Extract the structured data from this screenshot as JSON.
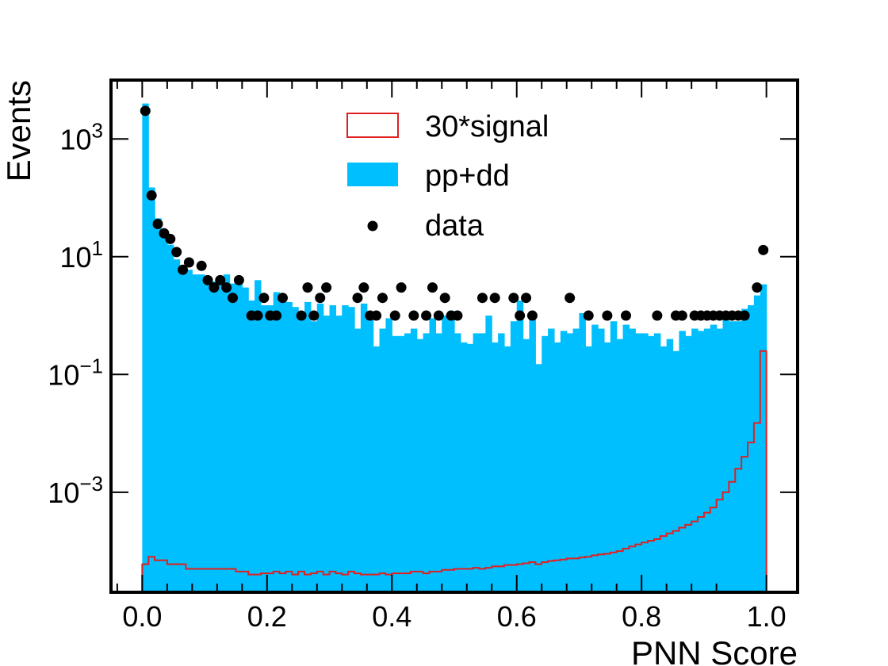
{
  "chart_data": {
    "type": "histogram",
    "xlabel": "PNN Score",
    "ylabel": "Events",
    "xlim": [
      -0.05,
      1.05
    ],
    "ylim": [
      2e-05,
      10000
    ],
    "yscale": "log",
    "grid": false,
    "legend_placement": "top-center",
    "x_ticks": [
      {
        "value": 0.0,
        "label": "0.0"
      },
      {
        "value": 0.2,
        "label": "0.2"
      },
      {
        "value": 0.4,
        "label": "0.4"
      },
      {
        "value": 0.6,
        "label": "0.6"
      },
      {
        "value": 0.8,
        "label": "0.8"
      },
      {
        "value": 1.0,
        "label": "1.0"
      }
    ],
    "y_ticks": [
      {
        "value": 1000,
        "base": "10",
        "exp": "3"
      },
      {
        "value": 10,
        "base": "10",
        "exp": "1"
      },
      {
        "value": 0.1,
        "base": "10",
        "exp": "−1"
      },
      {
        "value": 0.001,
        "base": "10",
        "exp": "−3"
      }
    ],
    "bin_edges_range": [
      0.0,
      1.0
    ],
    "n_bins": 100,
    "series": [
      {
        "name": "pp+dd",
        "kind": "filled-histogram",
        "color": "#00BFFF",
        "values": [
          4000,
          150,
          45,
          22,
          16,
          9,
          7,
          6,
          5,
          5,
          3.5,
          3.8,
          4.5,
          5,
          3.5,
          3.5,
          3,
          1.8,
          4,
          1.5,
          1.5,
          2.5,
          2.3,
          1.7,
          1.4,
          1.1,
          1.7,
          0.8,
          1.6,
          1,
          1.5,
          1,
          1.5,
          1.4,
          0.6,
          1.6,
          1,
          0.3,
          0.6,
          0.9,
          0.45,
          0.45,
          0.5,
          0.6,
          0.4,
          0.5,
          0.9,
          0.5,
          1,
          1.2,
          0.5,
          0.35,
          0.33,
          0.5,
          0.5,
          1,
          0.35,
          0.5,
          0.3,
          0.8,
          1.8,
          0.4,
          0.9,
          0.15,
          0.45,
          0.6,
          0.35,
          0.55,
          0.5,
          0.6,
          1.1,
          0.3,
          0.7,
          0.6,
          0.35,
          0.8,
          0.4,
          0.7,
          0.6,
          0.5,
          0.5,
          0.45,
          0.5,
          0.3,
          0.4,
          0.25,
          0.55,
          0.45,
          0.6,
          0.55,
          0.6,
          0.7,
          0.6,
          1.0,
          0.8,
          0.8,
          1.3,
          1.5,
          2.2,
          3.4
        ]
      },
      {
        "name": "30*signal",
        "kind": "step-histogram",
        "color": "#E02020",
        "values": [
          6e-05,
          8e-05,
          7e-05,
          7e-05,
          6e-05,
          6e-05,
          6e-05,
          5e-05,
          5e-05,
          5e-05,
          5e-05,
          5e-05,
          5e-05,
          5e-05,
          5e-05,
          4.5e-05,
          4.5e-05,
          4e-05,
          4e-05,
          4.2e-05,
          4.2e-05,
          4.5e-05,
          4.2e-05,
          4.5e-05,
          4e-05,
          4.5e-05,
          4e-05,
          4.2e-05,
          4.5e-05,
          4e-05,
          4.5e-05,
          4.2e-05,
          4e-05,
          4.5e-05,
          4.2e-05,
          4e-05,
          4e-05,
          4e-05,
          4.2e-05,
          4e-05,
          4.2e-05,
          4.2e-05,
          4.2e-05,
          4.5e-05,
          4.5e-05,
          4.2e-05,
          4.5e-05,
          4.5e-05,
          4.8e-05,
          4.8e-05,
          5e-05,
          5e-05,
          5e-05,
          5.2e-05,
          5e-05,
          5.2e-05,
          5.5e-05,
          5.5e-05,
          5.8e-05,
          5.8e-05,
          6e-05,
          6.2e-05,
          6.5e-05,
          6e-05,
          6.5e-05,
          6.8e-05,
          7e-05,
          7.2e-05,
          7.5e-05,
          7.5e-05,
          7.8e-05,
          8e-05,
          8.5e-05,
          8.8e-05,
          9e-05,
          9.5e-05,
          0.0001,
          0.00011,
          0.00012,
          0.00013,
          0.00014,
          0.00015,
          0.00016,
          0.00018,
          0.0002,
          0.00022,
          0.00025,
          0.00028,
          0.00032,
          0.00038,
          0.00045,
          0.00055,
          0.00075,
          0.001,
          0.0015,
          0.0025,
          0.004,
          0.007,
          0.015,
          0.25
        ]
      },
      {
        "name": "data",
        "kind": "points",
        "color": "#000000",
        "x": [
          0.005,
          0.015,
          0.025,
          0.035,
          0.045,
          0.055,
          0.065,
          0.075,
          0.095,
          0.105,
          0.115,
          0.125,
          0.135,
          0.145,
          0.155,
          0.175,
          0.185,
          0.195,
          0.205,
          0.215,
          0.225,
          0.255,
          0.265,
          0.275,
          0.285,
          0.295,
          0.345,
          0.355,
          0.365,
          0.375,
          0.385,
          0.405,
          0.415,
          0.435,
          0.455,
          0.465,
          0.475,
          0.485,
          0.495,
          0.505,
          0.545,
          0.565,
          0.595,
          0.605,
          0.615,
          0.625,
          0.685,
          0.715,
          0.745,
          0.775,
          0.825,
          0.855,
          0.865,
          0.885,
          0.895,
          0.905,
          0.915,
          0.925,
          0.935,
          0.945,
          0.955,
          0.965,
          0.985,
          0.995
        ],
        "values": [
          3000,
          110,
          36,
          25,
          20,
          12,
          6,
          8,
          7,
          4,
          3,
          4,
          3,
          2,
          4,
          1,
          1,
          2,
          1,
          1,
          2,
          1,
          3,
          1,
          2,
          3,
          2,
          3,
          1,
          1,
          2,
          1,
          3,
          1,
          1,
          3,
          1,
          2,
          1,
          1,
          2,
          2,
          2,
          1,
          2,
          1,
          2,
          1,
          1,
          1,
          1,
          1,
          1,
          1,
          1,
          1,
          1,
          1,
          1,
          1,
          1,
          1,
          3,
          13
        ]
      }
    ],
    "legend": [
      {
        "label": "30*signal",
        "kind": "step-histogram"
      },
      {
        "label": "pp+dd",
        "kind": "filled-histogram"
      },
      {
        "label": "data",
        "kind": "points"
      }
    ]
  }
}
